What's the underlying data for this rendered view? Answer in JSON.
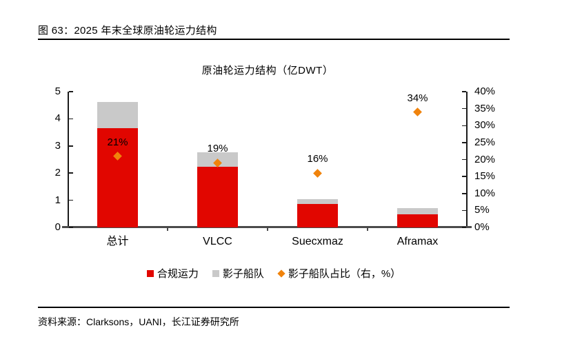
{
  "figure": {
    "caption": "图 63：2025 年末全球原油轮运力结构"
  },
  "chart_data": {
    "type": "bar",
    "subtype": "stacked-column-with-scatter",
    "title": "原油轮运力结构（亿DWT）",
    "categories": [
      "总计",
      "VLCC",
      "Suecxmaz",
      "Aframax"
    ],
    "series": [
      {
        "name": "合规运力",
        "type": "bar",
        "axis": "left",
        "marker": "square",
        "color": "#e10600",
        "values": [
          3.66,
          2.23,
          0.86,
          0.47
        ]
      },
      {
        "name": "影子船队",
        "type": "bar",
        "axis": "left",
        "marker": "square",
        "color": "#c9c9c9",
        "values": [
          0.96,
          0.54,
          0.17,
          0.24
        ]
      },
      {
        "name": "影子船队占比（右，%）",
        "type": "scatter",
        "axis": "right",
        "marker": "diamond",
        "color": "#f0830c",
        "values": [
          21,
          19,
          16,
          34
        ],
        "labels": [
          "21%",
          "19%",
          "16%",
          "34%"
        ]
      }
    ],
    "left_axis": {
      "min": 0,
      "max": 5,
      "ticks": [
        "5",
        "4",
        "3",
        "2",
        "1",
        "0"
      ]
    },
    "right_axis": {
      "min": 0,
      "max": 40,
      "ticks": [
        "40%",
        "35%",
        "30%",
        "25%",
        "20%",
        "15%",
        "10%",
        "5%",
        "0%"
      ]
    },
    "grid": false,
    "legend_position": "bottom"
  },
  "footer": {
    "source": "资料来源：Clarksons，UANI，长江证券研究所"
  }
}
